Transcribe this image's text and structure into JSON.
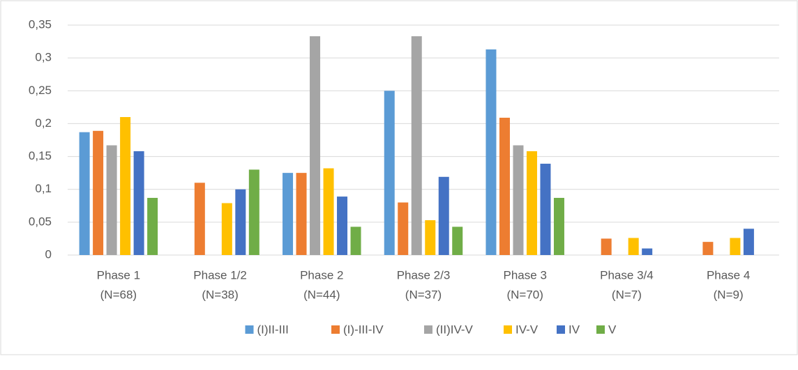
{
  "chart_data": {
    "type": "bar",
    "categories": [
      [
        "Phase 1",
        "(N=68)"
      ],
      [
        "Phase 1/2",
        "(N=38)"
      ],
      [
        "Phase 2",
        "(N=44)"
      ],
      [
        "Phase 2/3",
        "(N=37)"
      ],
      [
        "Phase 3",
        "(N=70)"
      ],
      [
        "Phase 3/4",
        "(N=7)"
      ],
      [
        "Phase 4",
        "(N=9)"
      ]
    ],
    "series": [
      {
        "name": "(I)II-III",
        "color": "#5b9bd5",
        "values": [
          0.187,
          0,
          0.125,
          0.25,
          0.313,
          0,
          0
        ]
      },
      {
        "name": "(I)-III-IV",
        "color": "#ed7d31",
        "values": [
          0.189,
          0.11,
          0.125,
          0.08,
          0.209,
          0.025,
          0.02
        ]
      },
      {
        "name": "(II)IV-V",
        "color": "#a5a5a5",
        "values": [
          0.167,
          0,
          0.333,
          0.333,
          0.167,
          0,
          0
        ]
      },
      {
        "name": "IV-V",
        "color": "#ffc000",
        "values": [
          0.21,
          0.079,
          0.132,
          0.053,
          0.158,
          0.026,
          0.026
        ]
      },
      {
        "name": "IV",
        "color": "#4472c4",
        "values": [
          0.158,
          0.1,
          0.089,
          0.119,
          0.139,
          0.01,
          0.04
        ]
      },
      {
        "name": "V",
        "color": "#70ad47",
        "values": [
          0.087,
          0.13,
          0.043,
          0.043,
          0.087,
          0,
          0
        ]
      }
    ],
    "ylim": [
      0,
      0.35
    ],
    "yticks": [
      0,
      {
        "value": 0.05,
        "label": "0,05"
      },
      {
        "value": 0.1,
        "label": "0,1"
      },
      {
        "value": 0.15,
        "label": "0,15"
      },
      {
        "value": 0.2,
        "label": "0,2"
      },
      {
        "value": 0.25,
        "label": "0,25"
      },
      {
        "value": 0.3,
        "label": "0,3"
      },
      {
        "value": 0.35,
        "label": "0,35"
      }
    ],
    "grid": true,
    "legend": "bottom"
  }
}
